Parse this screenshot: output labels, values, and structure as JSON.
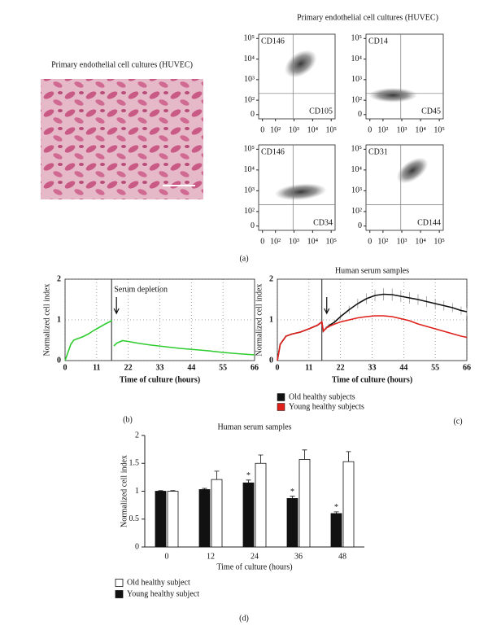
{
  "photo_title": "Primary endothelial cell cultures (HUVEC)",
  "flow_title": "Primary endothelial cell cultures (HUVEC)",
  "panel_labels": [
    "(a)",
    "(b)",
    "(c)",
    "(d)"
  ],
  "chart_data": [
    {
      "type": "flow",
      "y_marker": "CD146",
      "x_marker": "CD105",
      "xscale": "biexponential",
      "yscale": "biexponential",
      "xticks": [
        0,
        {
          "value": 100,
          "label": "10²"
        },
        {
          "value": 1000,
          "label": "10³"
        },
        {
          "value": 10000,
          "label": "10⁴"
        },
        {
          "value": 100000,
          "label": "10⁵"
        }
      ],
      "yticks": [
        0,
        {
          "value": 100,
          "label": "10²"
        },
        {
          "value": 1000,
          "label": "10³"
        },
        {
          "value": 10000,
          "label": "10⁴"
        },
        {
          "value": 100000,
          "label": "10⁵"
        }
      ]
    },
    {
      "type": "flow",
      "y_marker": "CD14",
      "x_marker": "CD45",
      "xscale": "biexponential",
      "yscale": "biexponential",
      "xticks": [
        0,
        {
          "value": 100,
          "label": "10²"
        },
        {
          "value": 1000,
          "label": "10³"
        },
        {
          "value": 10000,
          "label": "10⁴"
        },
        {
          "value": 100000,
          "label": "10⁵"
        }
      ],
      "yticks": [
        0,
        {
          "value": 100,
          "label": "10²"
        },
        {
          "value": 1000,
          "label": "10³"
        },
        {
          "value": 10000,
          "label": "10⁴"
        },
        {
          "value": 100000,
          "label": "10⁵"
        }
      ]
    },
    {
      "type": "flow",
      "y_marker": "CD146",
      "x_marker": "CD34",
      "xscale": "biexponential",
      "yscale": "biexponential",
      "xticks": [
        0,
        {
          "value": 100,
          "label": "10²"
        },
        {
          "value": 1000,
          "label": "10³"
        },
        {
          "value": 10000,
          "label": "10⁴"
        },
        {
          "value": 100000,
          "label": "10⁵"
        }
      ],
      "yticks": [
        0,
        {
          "value": 100,
          "label": "10²"
        },
        {
          "value": 1000,
          "label": "10³"
        },
        {
          "value": 10000,
          "label": "10⁴"
        },
        {
          "value": 100000,
          "label": "10⁵"
        }
      ]
    },
    {
      "type": "flow",
      "y_marker": "CD31",
      "x_marker": "CD144",
      "xscale": "biexponential",
      "yscale": "biexponential",
      "xticks": [
        0,
        {
          "value": 100,
          "label": "10²"
        },
        {
          "value": 1000,
          "label": "10³"
        },
        {
          "value": 10000,
          "label": "10⁴"
        },
        {
          "value": 100000,
          "label": "10⁵"
        }
      ],
      "yticks": [
        0,
        {
          "value": 100,
          "label": "10²"
        },
        {
          "value": 1000,
          "label": "10³"
        },
        {
          "value": 10000,
          "label": "10⁴"
        },
        {
          "value": 100000,
          "label": "10⁵"
        }
      ]
    },
    {
      "type": "line",
      "x_label": "Time of culture (hours)",
      "y_label": "Normalized cell index",
      "annotation": "Serum depletion",
      "vline": 16.2,
      "grid": true,
      "xlim": [
        0,
        66
      ],
      "ylim": [
        0,
        2
      ],
      "xticks": [
        0,
        11,
        22,
        33,
        44,
        55,
        66
      ],
      "yticks": [
        0,
        1,
        2
      ],
      "x": [
        0,
        1,
        2,
        3,
        4,
        6,
        8,
        10,
        12,
        14,
        16,
        16.2,
        16.4,
        17,
        18,
        20,
        22,
        26,
        30,
        35,
        40,
        45,
        50,
        55,
        60,
        66
      ],
      "series": [
        {
          "name": null,
          "color": "#2ecc2e",
          "values": [
            0,
            0.2,
            0.4,
            0.5,
            0.53,
            0.58,
            0.65,
            0.74,
            0.82,
            0.9,
            0.97,
            1.0,
            null,
            0.36,
            0.43,
            0.49,
            0.47,
            0.42,
            0.38,
            0.34,
            0.3,
            0.27,
            0.24,
            0.2,
            0.17,
            0.14
          ]
        }
      ]
    },
    {
      "type": "line",
      "title": "Human serum samples",
      "x_label": "Time of culture (hours)",
      "y_label": "Normalized cell index",
      "vline": 15.5,
      "grid": true,
      "xlim": [
        0,
        66
      ],
      "ylim": [
        0,
        2
      ],
      "xticks": [
        0,
        11,
        22,
        33,
        44,
        55,
        66
      ],
      "yticks": [
        0,
        1,
        2
      ],
      "x": [
        0,
        1,
        3,
        5,
        8,
        11,
        14,
        15.5,
        16,
        17,
        18,
        20,
        22,
        25,
        28,
        31,
        34,
        37,
        40,
        43,
        46,
        49,
        52,
        55,
        58,
        61,
        64,
        66
      ],
      "series": [
        {
          "name": "Old healthy subjects",
          "color": "#111111",
          "values": [
            0,
            0.4,
            0.6,
            0.65,
            0.7,
            0.78,
            0.87,
            0.95,
            0.72,
            0.8,
            0.86,
            0.95,
            1.08,
            1.25,
            1.4,
            1.52,
            1.6,
            1.63,
            1.62,
            1.58,
            1.54,
            1.5,
            1.45,
            1.4,
            1.35,
            1.3,
            1.23,
            1.2
          ],
          "errors": [
            0,
            0.02,
            0.02,
            0.02,
            0.02,
            0.02,
            0.02,
            0.02,
            0.03,
            0.04,
            0.05,
            0.06,
            0.08,
            0.1,
            0.12,
            0.13,
            0.14,
            0.15,
            0.15,
            0.14,
            0.14,
            0.13,
            0.13,
            0.12,
            0.12,
            0.11,
            0.1,
            0.1
          ]
        },
        {
          "name": "Young healthy subjects",
          "color": "#e0201b",
          "values": [
            0,
            0.4,
            0.6,
            0.65,
            0.7,
            0.78,
            0.87,
            0.95,
            0.72,
            0.8,
            0.84,
            0.9,
            0.95,
            1.0,
            1.05,
            1.08,
            1.1,
            1.1,
            1.08,
            1.03,
            0.98,
            0.9,
            0.84,
            0.78,
            0.72,
            0.66,
            0.6,
            0.57
          ]
        }
      ]
    },
    {
      "type": "bar",
      "title": "Human serum samples",
      "x_label": "Time of culture (hours)",
      "y_label": "Normalized cell index",
      "categories": [
        "0",
        "12",
        "24",
        "36",
        "48"
      ],
      "ylim": [
        0,
        2
      ],
      "yticks": [
        0,
        0.5,
        1,
        1.5,
        2
      ],
      "series": [
        {
          "name": "Old healthy subject",
          "color": "#ffffff",
          "values": [
            1.0,
            1.21,
            1.5,
            1.57,
            1.53
          ],
          "errors": [
            0.01,
            0.15,
            0.15,
            0.17,
            0.18
          ]
        },
        {
          "name": "Young healthy subject",
          "color": "#111111",
          "values": [
            1.0,
            1.03,
            1.15,
            0.87,
            0.6
          ],
          "errors": [
            0.01,
            0.02,
            0.05,
            0.04,
            0.03
          ],
          "significance_labels": [
            null,
            null,
            "*",
            "*",
            "*"
          ]
        }
      ]
    }
  ]
}
